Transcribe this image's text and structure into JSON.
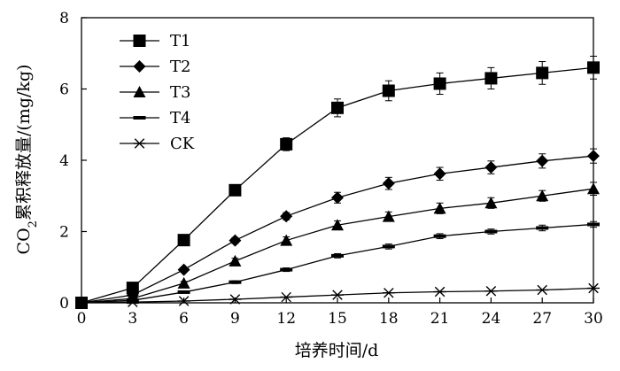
{
  "chart_data": {
    "type": "line",
    "title": "",
    "xlabel": "培养时间/d",
    "ylabel_parts": [
      "CO",
      "2",
      "累积释放量/(mg/kg)"
    ],
    "x": [
      0,
      3,
      6,
      9,
      12,
      15,
      18,
      21,
      24,
      27,
      30
    ],
    "xlim": [
      0,
      30
    ],
    "ylim": [
      0,
      8
    ],
    "x_ticks": [
      "0",
      "3",
      "6",
      "9",
      "12",
      "15",
      "18",
      "21",
      "24",
      "27",
      "30"
    ],
    "y_ticks": [
      "0",
      "2",
      "4",
      "6",
      "8"
    ],
    "grid": false,
    "error_bars": true,
    "legend_position": "top-left",
    "series": [
      {
        "name": "T1",
        "marker": "square",
        "values": [
          0,
          0.42,
          1.76,
          3.16,
          4.45,
          5.47,
          5.95,
          6.15,
          6.3,
          6.45,
          6.6
        ],
        "errors": [
          0,
          0.05,
          0.1,
          0.12,
          0.18,
          0.25,
          0.28,
          0.3,
          0.3,
          0.32,
          0.32
        ]
      },
      {
        "name": "T2",
        "marker": "diamond",
        "values": [
          0,
          0.22,
          0.93,
          1.75,
          2.43,
          2.95,
          3.35,
          3.62,
          3.8,
          3.98,
          4.12
        ],
        "errors": [
          0,
          0.04,
          0.06,
          0.08,
          0.1,
          0.15,
          0.17,
          0.18,
          0.18,
          0.2,
          0.2
        ]
      },
      {
        "name": "T3",
        "marker": "triangle",
        "values": [
          0,
          0.12,
          0.55,
          1.17,
          1.75,
          2.18,
          2.42,
          2.65,
          2.8,
          3.0,
          3.2
        ],
        "errors": [
          0,
          0.03,
          0.05,
          0.08,
          0.1,
          0.12,
          0.13,
          0.15,
          0.15,
          0.15,
          0.18
        ]
      },
      {
        "name": "T4",
        "marker": "dash",
        "values": [
          0,
          0.07,
          0.3,
          0.58,
          0.93,
          1.32,
          1.58,
          1.87,
          2.0,
          2.1,
          2.2
        ],
        "errors": [
          0,
          0.02,
          0.03,
          0.04,
          0.05,
          0.06,
          0.07,
          0.07,
          0.07,
          0.08,
          0.08
        ]
      },
      {
        "name": "CK",
        "marker": "asterisk",
        "values": [
          0,
          0.02,
          0.05,
          0.1,
          0.16,
          0.22,
          0.28,
          0.31,
          0.33,
          0.36,
          0.41
        ],
        "errors": [
          0,
          0,
          0,
          0,
          0,
          0,
          0,
          0,
          0,
          0,
          0
        ]
      }
    ]
  }
}
